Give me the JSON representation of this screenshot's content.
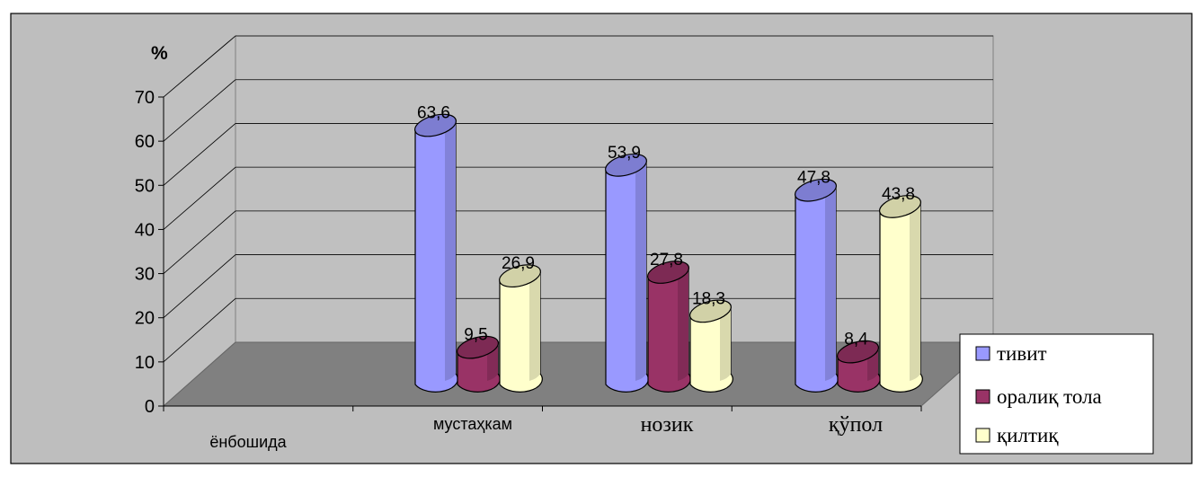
{
  "chart_data": {
    "type": "bar",
    "title": "",
    "ylabel": "%",
    "xlabel": "",
    "ylim": [
      0,
      70
    ],
    "yticks": [
      0,
      10,
      20,
      30,
      40,
      50,
      60,
      70
    ],
    "categories": [
      "ёнбошида",
      "мустаҳкам",
      "нозик",
      "қўпол"
    ],
    "series": [
      {
        "name": "тивит",
        "color": "#9999FF",
        "values": [
          null,
          63.6,
          53.9,
          47.8
        ]
      },
      {
        "name": "оралиқ тола",
        "color": "#993366",
        "values": [
          null,
          9.5,
          27.8,
          8.4
        ]
      },
      {
        "name": "қилтиқ",
        "color": "#FFFFCC",
        "values": [
          null,
          26.9,
          18.3,
          43.8
        ]
      }
    ],
    "grid": true,
    "legend_position": "right",
    "style": "3d-cylinder",
    "colors": {
      "wall": "#C0C0C0",
      "floor": "#808080",
      "plot_area": "#BEBEBE"
    }
  }
}
